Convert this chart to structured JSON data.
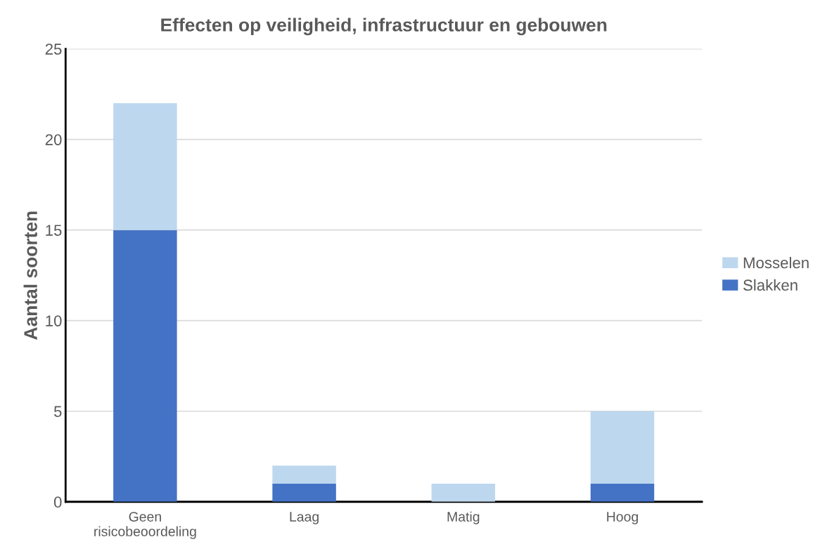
{
  "chart_data": {
    "type": "bar",
    "title": "Effecten op veiligheid, infrastructuur en gebouwen",
    "ylabel": "Aantal soorten",
    "categories": [
      "Geen\nrisicobeoordeling",
      "Laag",
      "Matig",
      "Hoog"
    ],
    "series": [
      {
        "name": "Slakken",
        "color": "#4472c4",
        "values": [
          15,
          1,
          0,
          1
        ]
      },
      {
        "name": "Mosselen",
        "color": "#bdd7ee",
        "values": [
          7,
          1,
          1,
          4
        ]
      }
    ],
    "stacked": true,
    "ylim": [
      0,
      25
    ],
    "yticks": [
      0,
      5,
      10,
      15,
      20,
      25
    ],
    "grid": "y",
    "legend": "right"
  }
}
